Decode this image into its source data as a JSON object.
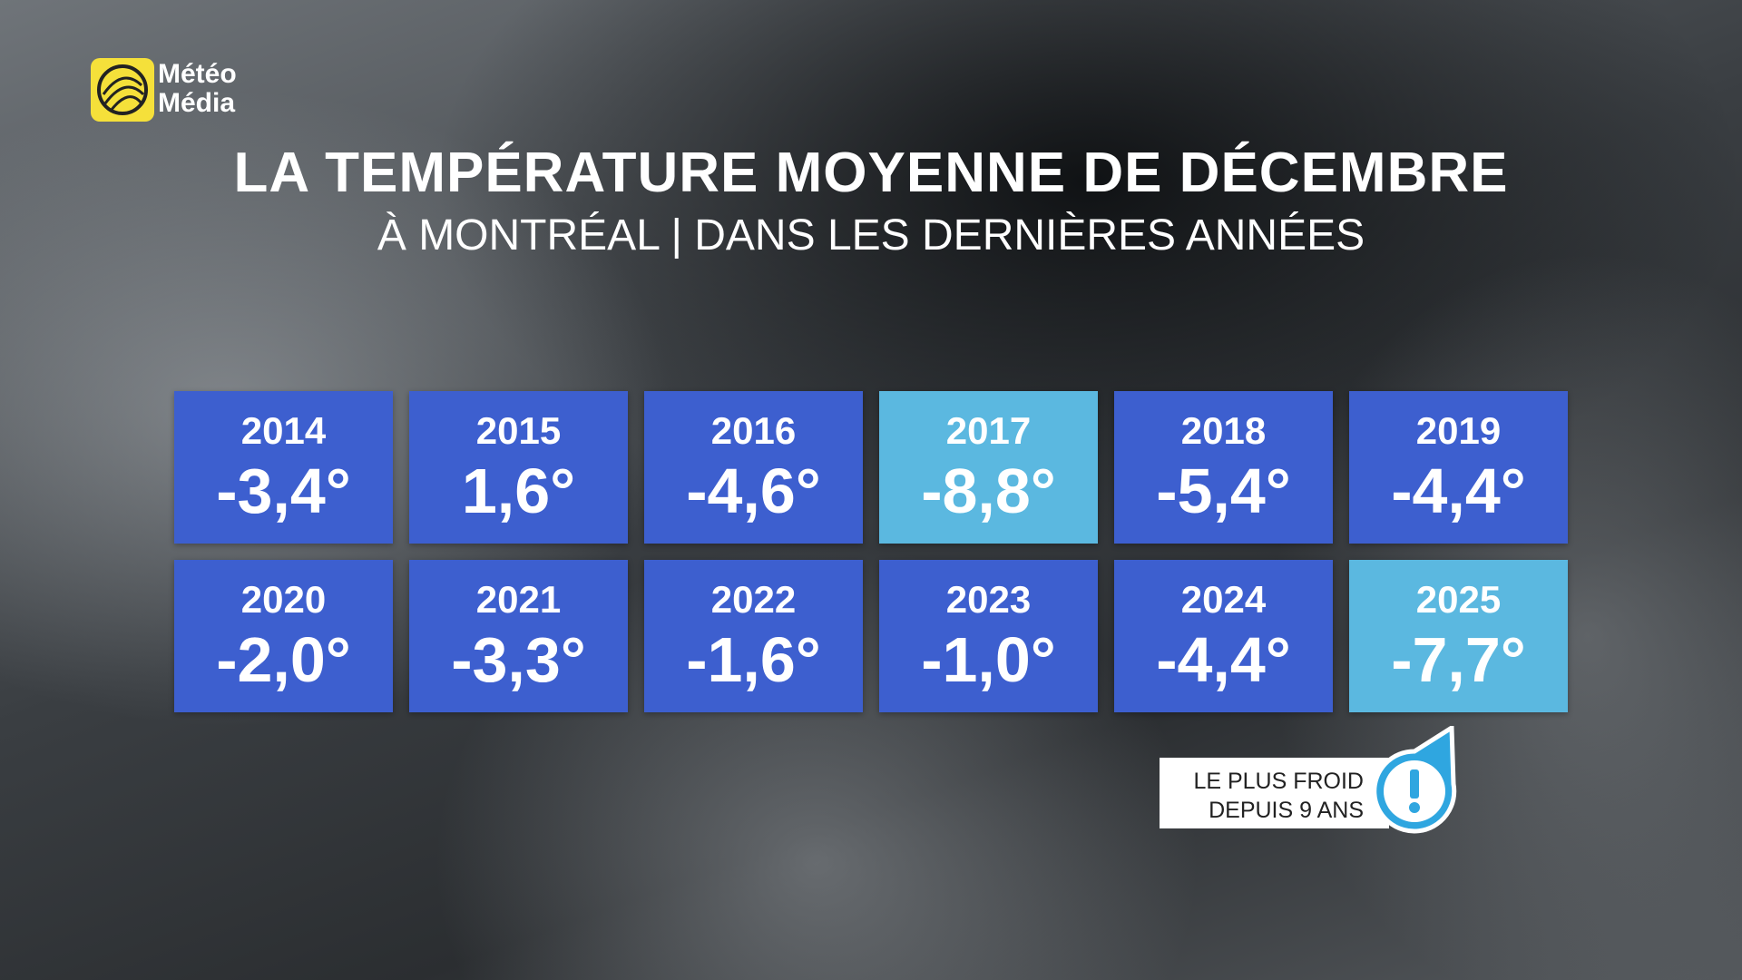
{
  "logo": {
    "line1": "Météo",
    "line2": "Média"
  },
  "header": {
    "title": "LA TEMPÉRATURE MOYENNE DE DÉCEMBRE",
    "subtitle": "À MONTRÉAL | DANS LES DERNIÈRES ANNÉES"
  },
  "tiles": [
    {
      "year": "2014",
      "value": "-3,4°",
      "color": "#3d5fcf"
    },
    {
      "year": "2015",
      "value": "1,6°",
      "color": "#3d5fcf"
    },
    {
      "year": "2016",
      "value": "-4,6°",
      "color": "#3d5fcf"
    },
    {
      "year": "2017",
      "value": "-8,8°",
      "color": "#5bb8e0"
    },
    {
      "year": "2018",
      "value": "-5,4°",
      "color": "#3d5fcf"
    },
    {
      "year": "2019",
      "value": "-4,4°",
      "color": "#3d5fcf"
    },
    {
      "year": "2020",
      "value": "-2,0°",
      "color": "#3d5fcf"
    },
    {
      "year": "2021",
      "value": "-3,3°",
      "color": "#3d5fcf"
    },
    {
      "year": "2022",
      "value": "-1,6°",
      "color": "#3d5fcf"
    },
    {
      "year": "2023",
      "value": "-1,0°",
      "color": "#3d5fcf"
    },
    {
      "year": "2024",
      "value": "-4,4°",
      "color": "#3d5fcf"
    },
    {
      "year": "2025",
      "value": "-7,7°",
      "color": "#5bb8e0"
    }
  ],
  "callout": {
    "line1": "LE PLUS FROID",
    "line2": "DEPUIS 9 ANS"
  }
}
